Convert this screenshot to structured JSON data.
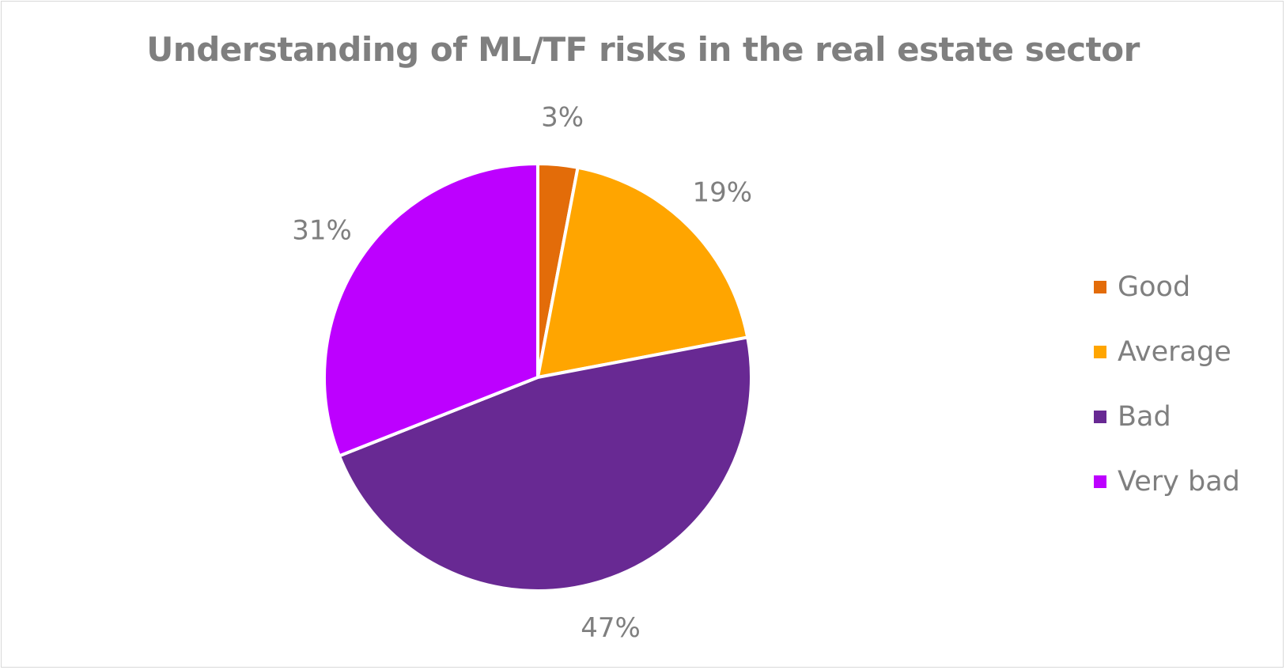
{
  "chart_data": {
    "type": "pie",
    "title": "Understanding of ML/TF risks in the real estate sector",
    "legend_position": "right",
    "slices": [
      {
        "label": "Good",
        "value": 3,
        "display": "3%",
        "color": "#e36c09"
      },
      {
        "label": "Average",
        "value": 19,
        "display": "19%",
        "color": "#ffa500"
      },
      {
        "label": "Bad",
        "value": 47,
        "display": "47%",
        "color": "#682993"
      },
      {
        "label": "Very bad",
        "value": 31,
        "display": "31%",
        "color": "#bd00ff"
      }
    ]
  }
}
